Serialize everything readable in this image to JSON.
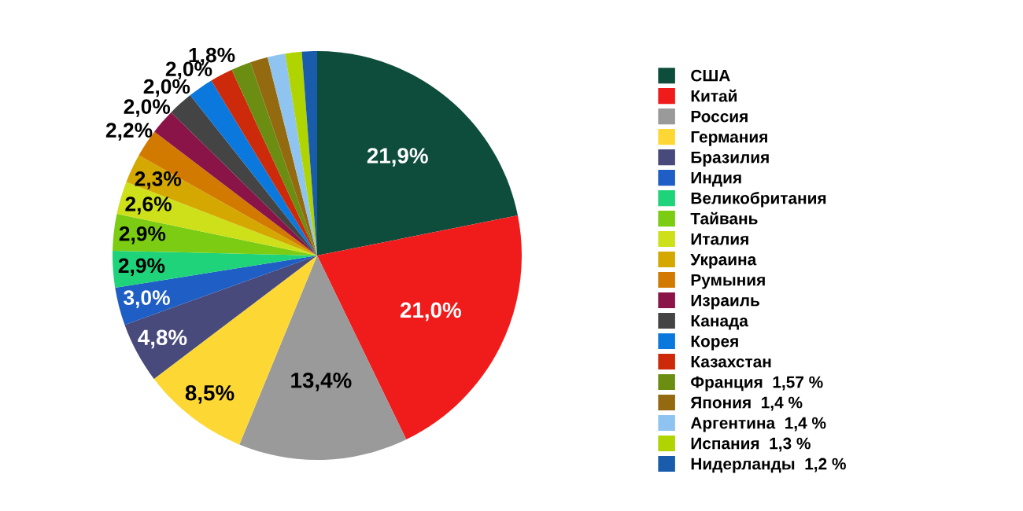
{
  "chart_data": {
    "type": "pie",
    "categories": [
      "США",
      "Китай",
      "Россия",
      "Германия",
      "Бразилия",
      "Индия",
      "Великобритания",
      "Тайвань",
      "Италия",
      "Украина",
      "Румыния",
      "Израиль",
      "Канада",
      "Корея",
      "Казахстан",
      "Франция  1,57 %",
      "Япония  1,4 %",
      "Аргентина  1,4 %",
      "Испания  1,3 %",
      "Нидерланды  1,2 %"
    ],
    "values": [
      21.9,
      21.0,
      13.4,
      8.5,
      4.8,
      3.0,
      2.9,
      2.9,
      2.6,
      2.3,
      2.2,
      2.0,
      2.0,
      2.0,
      1.8,
      1.57,
      1.4,
      1.4,
      1.3,
      1.2
    ],
    "value_labels": [
      "21,9%",
      "21,0%",
      "13,4%",
      "8,5%",
      "4,8%",
      "3,0%",
      "2,9%",
      "2,9%",
      "2,6%",
      "2,3%",
      "2,2%",
      "2,0%",
      "2,0%",
      "2,0%",
      "1,8%",
      null,
      null,
      null,
      null,
      null
    ],
    "colors": [
      "#0e4d3c",
      "#f01c1c",
      "#9a9a9a",
      "#fdd835",
      "#484a7c",
      "#1f5ec4",
      "#1ed37a",
      "#7ccc14",
      "#cde01a",
      "#d4a800",
      "#d27a00",
      "#8a1448",
      "#444444",
      "#0a78dc",
      "#cc2a0a",
      "#6b8e12",
      "#946a10",
      "#90c4f0",
      "#b0d400",
      "#1a5cac"
    ],
    "legend": "right"
  }
}
